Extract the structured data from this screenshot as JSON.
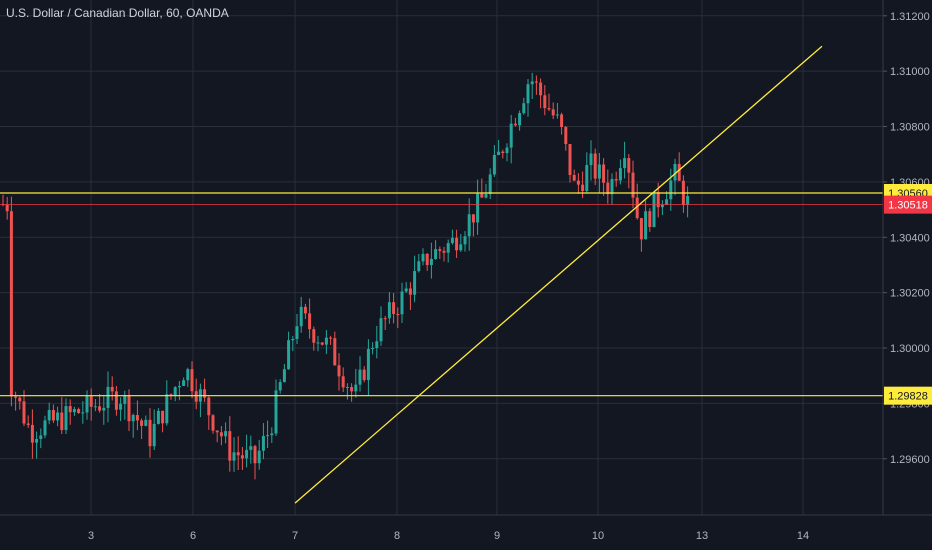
{
  "window": {
    "title": "U.S. Dollar / Canadian Dollar, 60, OANDA"
  },
  "colors": {
    "background": "#131722",
    "grid": "#2a2e39",
    "axis_text": "#b2b5be",
    "bull": "#26a69a",
    "bear": "#ef5350",
    "drawing_line": "#ffeb3b",
    "last_price": "#f23645"
  },
  "chart_data": {
    "type": "candlestick",
    "title": "U.S. Dollar / Canadian Dollar, 60, OANDA",
    "ylim": [
      1.2945,
      1.3118
    ],
    "y_ticks": [
      "1.29600",
      "1.29800",
      "1.30000",
      "1.30200",
      "1.30400",
      "1.30600",
      "1.30800",
      "1.31000",
      "1.31200"
    ],
    "x_ticks": [
      "3",
      "6",
      "7",
      "8",
      "9",
      "10",
      "13",
      "14"
    ],
    "grid": true,
    "horizontal_levels": [
      {
        "price": 1.3056,
        "label": "1.30560",
        "style": "yellow"
      },
      {
        "price": 1.29828,
        "label": "1.29828",
        "style": "yellow"
      },
      {
        "price": 1.30518,
        "label": "1.30518",
        "style": "last-price"
      }
    ],
    "trendline": {
      "start": {
        "x": "7",
        "price": 1.2944
      },
      "end": {
        "x": "14 (extended)",
        "price": 1.3109
      }
    },
    "anchors": [
      {
        "x": "3",
        "price": 1.2988
      },
      {
        "x": "3",
        "price": 1.297
      },
      {
        "x": "6",
        "price": 1.2983
      },
      {
        "x": "6",
        "price": 1.2968
      },
      {
        "x": "6",
        "price": 1.2993
      },
      {
        "x": "7",
        "price": 1.2963
      },
      {
        "x": "7",
        "price": 1.2959
      },
      {
        "x": "7",
        "price": 1.2971
      },
      {
        "x": "7",
        "price": 1.3012
      },
      {
        "x": "8",
        "price": 1.3
      },
      {
        "x": "8",
        "price": 1.2982
      },
      {
        "x": "8",
        "price": 1.3005
      },
      {
        "x": "8",
        "price": 1.3018
      },
      {
        "x": "9",
        "price": 1.3033
      },
      {
        "x": "9",
        "price": 1.3038
      },
      {
        "x": "9",
        "price": 1.3052
      },
      {
        "x": "9",
        "price": 1.3098
      },
      {
        "x": "10",
        "price": 1.308
      },
      {
        "x": "10",
        "price": 1.3057
      },
      {
        "x": "10",
        "price": 1.3066
      },
      {
        "x": "10",
        "price": 1.3058
      },
      {
        "x": "10",
        "price": 1.3074
      },
      {
        "x": "10",
        "price": 1.3042
      },
      {
        "x": "13",
        "price": 1.3052
      },
      {
        "x": "13",
        "price": 1.3062
      },
      {
        "x": "13",
        "price": 1.3052
      }
    ]
  }
}
